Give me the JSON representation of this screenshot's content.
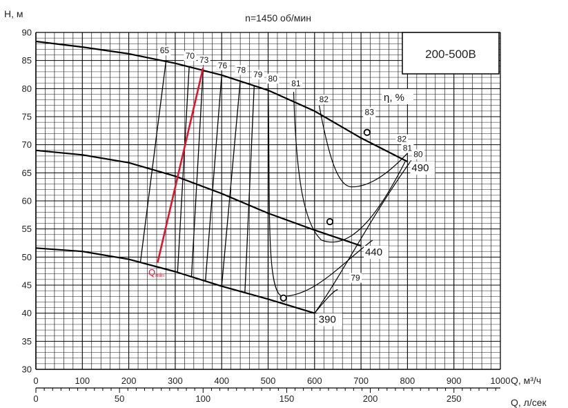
{
  "chart_data": {
    "type": "line",
    "title": "n=1450 об/мин",
    "model": "200-500В",
    "ylabel": "H, м",
    "xlabel": "Q, м³/ч",
    "x2label": "Q, л/сек",
    "eta_label": "η, %",
    "qmin_main": "Q",
    "qmin_sub": "min",
    "xlim": [
      0,
      1000
    ],
    "ylim": [
      30,
      90
    ],
    "x2lim": [
      0,
      277.78
    ],
    "grid": true,
    "x_ticks": [
      "0",
      "100",
      "200",
      "300",
      "400",
      "500",
      "600",
      "700",
      "800",
      "900",
      "1000"
    ],
    "y_ticks": [
      "30",
      "35",
      "40",
      "45",
      "50",
      "55",
      "60",
      "65",
      "70",
      "75",
      "80",
      "85",
      "90"
    ],
    "x2_ticks": [
      "0",
      "50",
      "100",
      "150",
      "200",
      "250"
    ],
    "series": [
      {
        "name": "490",
        "x": [
          0,
          100,
          200,
          300,
          400,
          500,
          600,
          700,
          800
        ],
        "y": [
          88.4,
          87.4,
          86.2,
          84.5,
          82.4,
          79.7,
          76.0,
          71.2,
          67.0
        ]
      },
      {
        "name": "440",
        "x": [
          0,
          100,
          200,
          300,
          400,
          500,
          600,
          700
        ],
        "y": [
          69.0,
          68.2,
          66.8,
          64.4,
          61.3,
          57.8,
          54.8,
          52.0
        ]
      },
      {
        "name": "390",
        "x": [
          0,
          100,
          200,
          300,
          400,
          500,
          600
        ],
        "y": [
          51.6,
          51.0,
          49.6,
          47.4,
          44.8,
          42.5,
          40.0
        ]
      }
    ],
    "efficiency_labels": [
      "65",
      "70",
      "73",
      "76",
      "78",
      "79",
      "80",
      "81",
      "82",
      "83",
      "82",
      "81",
      "80",
      "79"
    ],
    "bep_points": [
      {
        "x": 713,
        "y": 72.2
      },
      {
        "x": 633,
        "y": 56.3
      },
      {
        "x": 533,
        "y": 42.7
      }
    ],
    "qmin_line": {
      "x": [
        262,
        360
      ],
      "y": [
        49.0,
        83.7
      ]
    }
  }
}
